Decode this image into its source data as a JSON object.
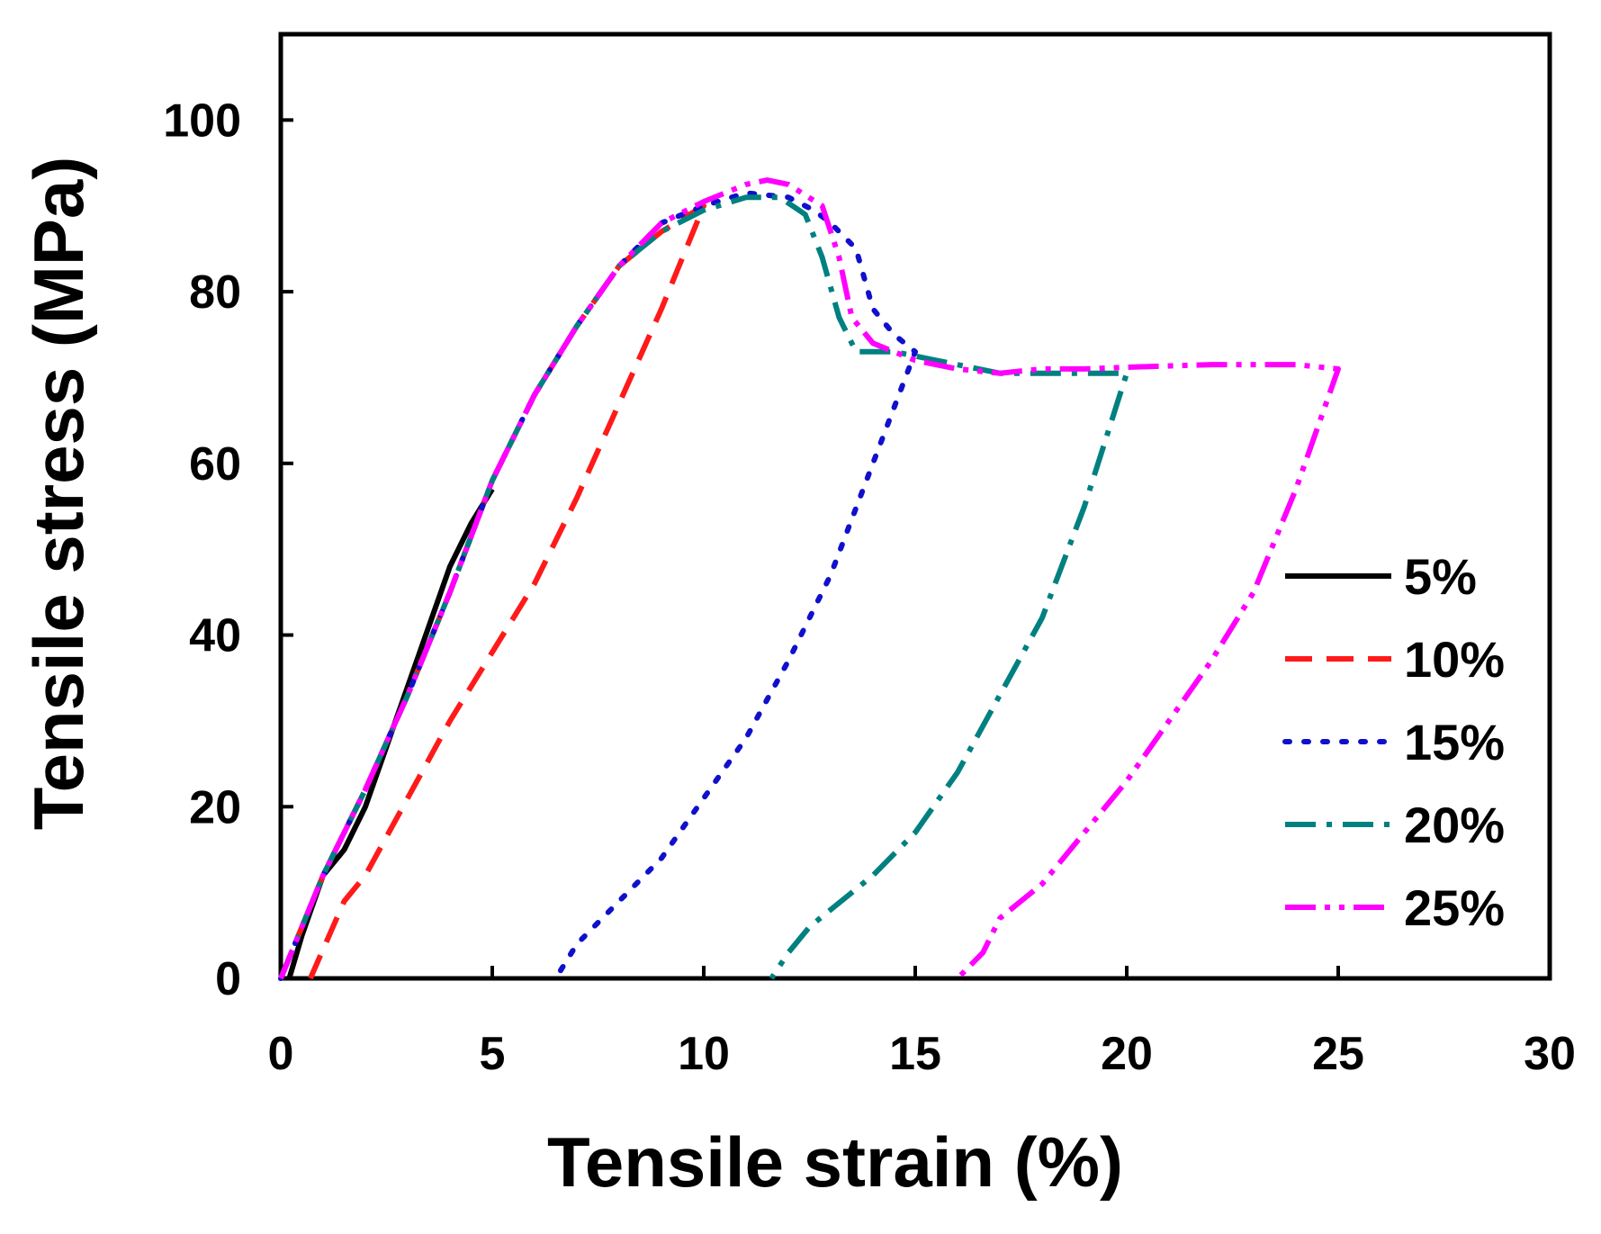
{
  "chart_data": {
    "type": "line",
    "title": "",
    "xlabel": "Tensile strain (%)",
    "ylabel": "Tensile stress (MPa)",
    "xlim": [
      0,
      30
    ],
    "ylim": [
      0,
      110
    ],
    "xticks": [
      0,
      5,
      10,
      15,
      20,
      25,
      30
    ],
    "yticks": [
      0,
      20,
      40,
      60,
      80,
      100
    ],
    "grid": false,
    "legend_position": "right",
    "series": [
      {
        "name": "5%",
        "color": "#000000",
        "dash": "solid",
        "points": [
          [
            0.2,
            0
          ],
          [
            0.5,
            5
          ],
          [
            1.0,
            12
          ],
          [
            1.5,
            15
          ],
          [
            2,
            20
          ],
          [
            2.5,
            27
          ],
          [
            3,
            34
          ],
          [
            3.5,
            41
          ],
          [
            4,
            48
          ],
          [
            4.5,
            53
          ],
          [
            5,
            57
          ]
        ]
      },
      {
        "name": "10%",
        "color": "#ff1a1a",
        "dash": "dashed",
        "points": [
          [
            0,
            0
          ],
          [
            0.5,
            6
          ],
          [
            1,
            12
          ],
          [
            2,
            22
          ],
          [
            3,
            33
          ],
          [
            4,
            45
          ],
          [
            5,
            58
          ],
          [
            6,
            68
          ],
          [
            7,
            76
          ],
          [
            8,
            83
          ],
          [
            9,
            87
          ],
          [
            10,
            90
          ],
          [
            10,
            90
          ],
          [
            9,
            78
          ],
          [
            8,
            67
          ],
          [
            7,
            56
          ],
          [
            6,
            46
          ],
          [
            5,
            38
          ],
          [
            4,
            30
          ],
          [
            3,
            21
          ],
          [
            2,
            12
          ],
          [
            1.5,
            9
          ],
          [
            0.7,
            0
          ]
        ]
      },
      {
        "name": "15%",
        "color": "#1010cc",
        "dash": "dotted",
        "points": [
          [
            0,
            0
          ],
          [
            1,
            12
          ],
          [
            2,
            22
          ],
          [
            3,
            33
          ],
          [
            4,
            45
          ],
          [
            5,
            58
          ],
          [
            6,
            68
          ],
          [
            7,
            76
          ],
          [
            8,
            83
          ],
          [
            9,
            88
          ],
          [
            10,
            90
          ],
          [
            11,
            91.5
          ],
          [
            12,
            91
          ],
          [
            12.6,
            89.5
          ],
          [
            13,
            88
          ],
          [
            13.6,
            85
          ],
          [
            14,
            78
          ],
          [
            14.5,
            75
          ],
          [
            15,
            73
          ],
          [
            15,
            73
          ],
          [
            14,
            60
          ],
          [
            13,
            47
          ],
          [
            12,
            37
          ],
          [
            11,
            28
          ],
          [
            10,
            21
          ],
          [
            9,
            14
          ],
          [
            8,
            9
          ],
          [
            7,
            4
          ],
          [
            6.5,
            0
          ]
        ]
      },
      {
        "name": "20%",
        "color": "#008080",
        "dash": "dashdot",
        "points": [
          [
            0,
            0
          ],
          [
            1,
            12
          ],
          [
            2,
            22
          ],
          [
            3,
            33
          ],
          [
            4,
            45
          ],
          [
            5,
            58
          ],
          [
            6,
            68
          ],
          [
            7,
            76
          ],
          [
            8,
            83
          ],
          [
            9,
            87
          ],
          [
            10,
            89.5
          ],
          [
            11,
            91
          ],
          [
            11.8,
            91
          ],
          [
            12.4,
            89
          ],
          [
            12.8,
            84
          ],
          [
            13.2,
            77
          ],
          [
            13.6,
            73
          ],
          [
            14.5,
            73
          ],
          [
            15.5,
            72
          ],
          [
            17,
            70.5
          ],
          [
            18,
            70.5
          ],
          [
            19,
            70.5
          ],
          [
            20,
            70.5
          ],
          [
            20,
            70.5
          ],
          [
            19,
            55
          ],
          [
            18,
            42
          ],
          [
            17,
            33
          ],
          [
            16,
            24
          ],
          [
            15,
            17
          ],
          [
            14,
            12
          ],
          [
            13,
            8
          ],
          [
            12.5,
            6
          ],
          [
            12,
            3
          ],
          [
            11.6,
            0
          ]
        ]
      },
      {
        "name": "25%",
        "color": "#ff00ff",
        "dash": "dashdotdot",
        "points": [
          [
            0,
            0
          ],
          [
            1,
            12
          ],
          [
            2,
            22
          ],
          [
            3,
            33
          ],
          [
            4,
            45
          ],
          [
            5,
            58
          ],
          [
            6,
            68
          ],
          [
            7,
            76
          ],
          [
            8,
            83
          ],
          [
            9,
            88
          ],
          [
            10,
            90.5
          ],
          [
            11,
            92.5
          ],
          [
            11.5,
            93
          ],
          [
            12,
            92.5
          ],
          [
            12.8,
            90
          ],
          [
            13.2,
            84
          ],
          [
            13.5,
            77
          ],
          [
            14,
            74
          ],
          [
            15,
            72
          ],
          [
            16,
            71
          ],
          [
            17,
            70.5
          ],
          [
            18,
            71
          ],
          [
            19,
            71
          ],
          [
            20,
            71.2
          ],
          [
            22,
            71.5
          ],
          [
            24,
            71.5
          ],
          [
            25,
            71
          ],
          [
            25,
            71
          ],
          [
            24,
            57
          ],
          [
            23,
            45
          ],
          [
            22,
            37
          ],
          [
            21,
            30
          ],
          [
            20,
            23
          ],
          [
            19,
            17
          ],
          [
            18,
            11
          ],
          [
            17,
            7
          ],
          [
            16.6,
            3
          ],
          [
            16,
            0
          ]
        ]
      }
    ]
  }
}
